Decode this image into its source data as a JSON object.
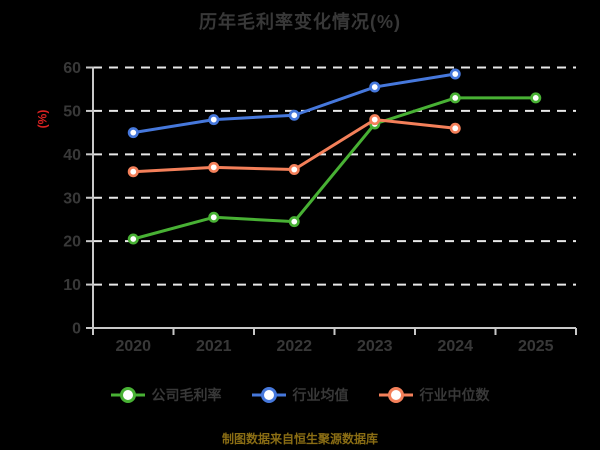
{
  "title": "历年毛利率变化情况(%)",
  "footer": "制图数据来自恒生聚源数据库",
  "colors": {
    "background": "#000000",
    "text_gray": "#383838",
    "axis_line": "#c8c8c8",
    "gridline": "#e8e8e8",
    "unit_label_red": "#dd2222",
    "footer_gold": "#8a6d14",
    "marker_fill": "#ffffff"
  },
  "chart_data": {
    "type": "line",
    "title": "历年毛利率变化情况(%)",
    "categories": [
      "2020",
      "2021",
      "2022",
      "2023",
      "2024",
      "2025"
    ],
    "series": [
      {
        "name": "公司毛利率",
        "color": "#48b134",
        "values": [
          20.5,
          25.5,
          24.5,
          47,
          53,
          53
        ]
      },
      {
        "name": "行业均值",
        "color": "#4678dc",
        "values": [
          45,
          48,
          49,
          55.5,
          58.5,
          null
        ]
      },
      {
        "name": "行业中位数",
        "color": "#f4805a",
        "values": [
          36,
          37,
          36.5,
          48,
          46,
          null
        ]
      }
    ],
    "xlabel": "",
    "ylabel": "(%)",
    "ylim": [
      0,
      60
    ],
    "yticks": [
      0,
      10,
      20,
      30,
      40,
      50,
      60
    ],
    "grid": "horizontal-white-dashed",
    "legend_position": "bottom",
    "marker_style": "circle-white-fill-colored-ring"
  }
}
